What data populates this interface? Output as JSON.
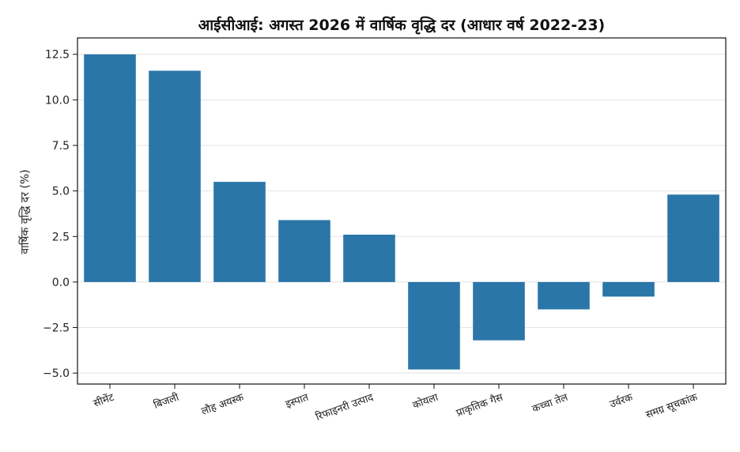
{
  "chart_data": {
    "type": "bar",
    "title": "आईसीआई: अगस्त 2026 में वार्षिक वृद्धि दर (आधार वर्ष 2022-23)",
    "xlabel": "",
    "ylabel": "वार्षिक वृद्धि दर (%)",
    "categories": [
      "सीमेंट",
      "बिजली",
      "लौह अयस्क",
      "इस्पात",
      "रिफाइनरी उत्पाद",
      "कोयला",
      "प्राकृतिक गैस",
      "कच्चा तेल",
      "उर्वरक",
      "समग्र सूचकांक"
    ],
    "values": [
      12.5,
      11.6,
      5.5,
      3.4,
      2.6,
      -4.8,
      -3.2,
      -1.5,
      -0.8,
      4.8
    ],
    "ylim": [
      -5.6,
      13.4
    ],
    "yticks": [
      "−5.0",
      "−2.5",
      "0.0",
      "2.5",
      "5.0",
      "7.5",
      "10.0",
      "12.5"
    ],
    "ytick_values": [
      -5.0,
      -2.5,
      0.0,
      2.5,
      5.0,
      7.5,
      10.0,
      12.5
    ],
    "grid": "y",
    "bar_color": "#2a76a8"
  }
}
